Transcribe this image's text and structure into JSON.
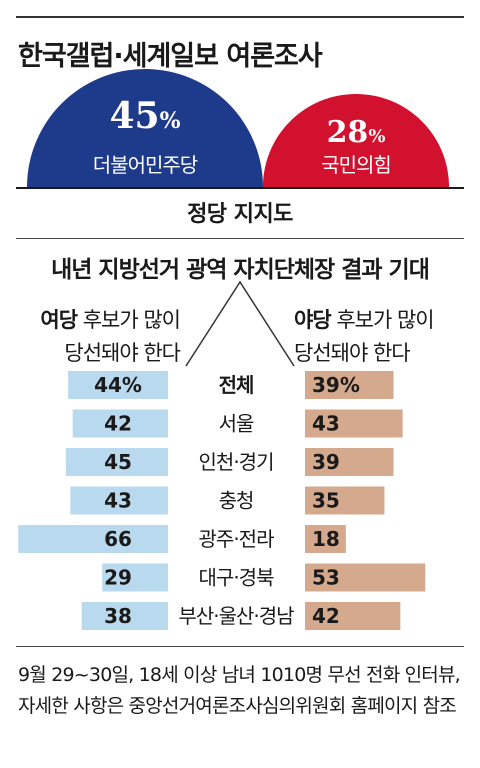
{
  "title": "한국갤럽·세계일보 여론조사",
  "party_support": {
    "caption": "정당 지지도",
    "parties": [
      {
        "name": "더불어민주당",
        "value": 45,
        "unit": "%",
        "color": "#1e3a8a"
      },
      {
        "name": "국민의힘",
        "value": 28,
        "unit": "%",
        "color": "#d2112e"
      }
    ]
  },
  "chart_data": {
    "type": "bar",
    "title": "내년 지방선거 광역 자치단체장 결과 기대",
    "series_labels": {
      "ruling": {
        "bold": "여당",
        "line1": " 후보가 많이",
        "line2": "당선돼야 한다"
      },
      "opposition": {
        "bold": "야당",
        "line1": " 후보가 많이",
        "line2": "당선돼야 한다"
      }
    },
    "categories": [
      "전체",
      "서울",
      "인천·경기",
      "충청",
      "광주·전라",
      "대구·경북",
      "부산·울산·경남"
    ],
    "series": [
      {
        "key": "ruling",
        "values": [
          44,
          42,
          45,
          43,
          66,
          29,
          38
        ],
        "color": "#b9d9ee"
      },
      {
        "key": "opposition",
        "values": [
          39,
          43,
          39,
          35,
          18,
          53,
          42
        ],
        "color": "#d4a98d"
      }
    ],
    "first_value_suffix": "%"
  },
  "note": "9월 29~30일, 18세 이상 남녀 1010명 무선 전화 인터뷰, 자세한 사항은 중앙선거여론조사심의위원회 홈페이지 참조"
}
